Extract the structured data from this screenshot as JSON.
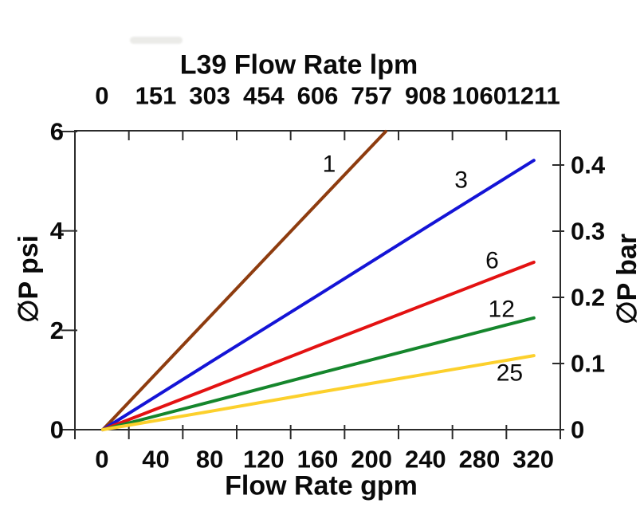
{
  "chart_data": {
    "type": "line",
    "top_axis": {
      "title": "L39 Flow Rate lpm",
      "unit": "lpm",
      "tick_labels": [
        "0",
        "151",
        "303",
        "454",
        "606",
        "757",
        "908",
        "1060",
        "1211"
      ]
    },
    "bottom_axis": {
      "title": "Flow Rate gpm",
      "unit": "gpm",
      "tick_labels": [
        "0",
        "40",
        "80",
        "120",
        "160",
        "200",
        "240",
        "280",
        "320"
      ],
      "labels_centered_between_ticks": true
    },
    "left_axis": {
      "title": "∅P psi",
      "unit": "psi",
      "ticks": [
        0,
        2,
        4,
        6
      ],
      "range": [
        0,
        6
      ]
    },
    "right_axis": {
      "title": "∅P bar",
      "unit": "bar",
      "ticks": [
        0,
        0.1,
        0.2,
        0.3,
        0.4
      ]
    },
    "grid": false,
    "legend_position": "inline-labels",
    "series": [
      {
        "name": "1",
        "color": "#8e3c0f",
        "points_gpm_psi": [
          [
            0,
            0
          ],
          [
            50,
            1.43
          ],
          [
            100,
            2.86
          ],
          [
            150,
            4.29
          ],
          [
            210,
            6.0
          ]
        ],
        "label_at_gpm_psi": [
          168,
          5.34
        ]
      },
      {
        "name": "3",
        "color": "#1414d6",
        "points_gpm_psi": [
          [
            0,
            0
          ],
          [
            80,
            1.36
          ],
          [
            160,
            2.71
          ],
          [
            240,
            4.07
          ],
          [
            320,
            5.42
          ]
        ],
        "label_at_gpm_psi": [
          266,
          5.02
        ]
      },
      {
        "name": "6",
        "color": "#e31212",
        "points_gpm_psi": [
          [
            0,
            0
          ],
          [
            80,
            0.84
          ],
          [
            160,
            1.69
          ],
          [
            240,
            2.53
          ],
          [
            320,
            3.37
          ]
        ],
        "label_at_gpm_psi": [
          289,
          3.4
        ]
      },
      {
        "name": "12",
        "color": "#15862c",
        "points_gpm_psi": [
          [
            0,
            0
          ],
          [
            80,
            0.56
          ],
          [
            160,
            1.13
          ],
          [
            240,
            1.69
          ],
          [
            320,
            2.25
          ]
        ],
        "label_at_gpm_psi": [
          296,
          2.42
        ]
      },
      {
        "name": "25",
        "color": "#fcd02c",
        "points_gpm_psi": [
          [
            0,
            0
          ],
          [
            80,
            0.37
          ],
          [
            160,
            0.75
          ],
          [
            240,
            1.12
          ],
          [
            320,
            1.49
          ]
        ],
        "label_at_gpm_psi": [
          302,
          1.14
        ]
      }
    ],
    "colors": {
      "axis": "#2b2b2b",
      "text": "#0a0a0a",
      "background": "#ffffff"
    }
  }
}
